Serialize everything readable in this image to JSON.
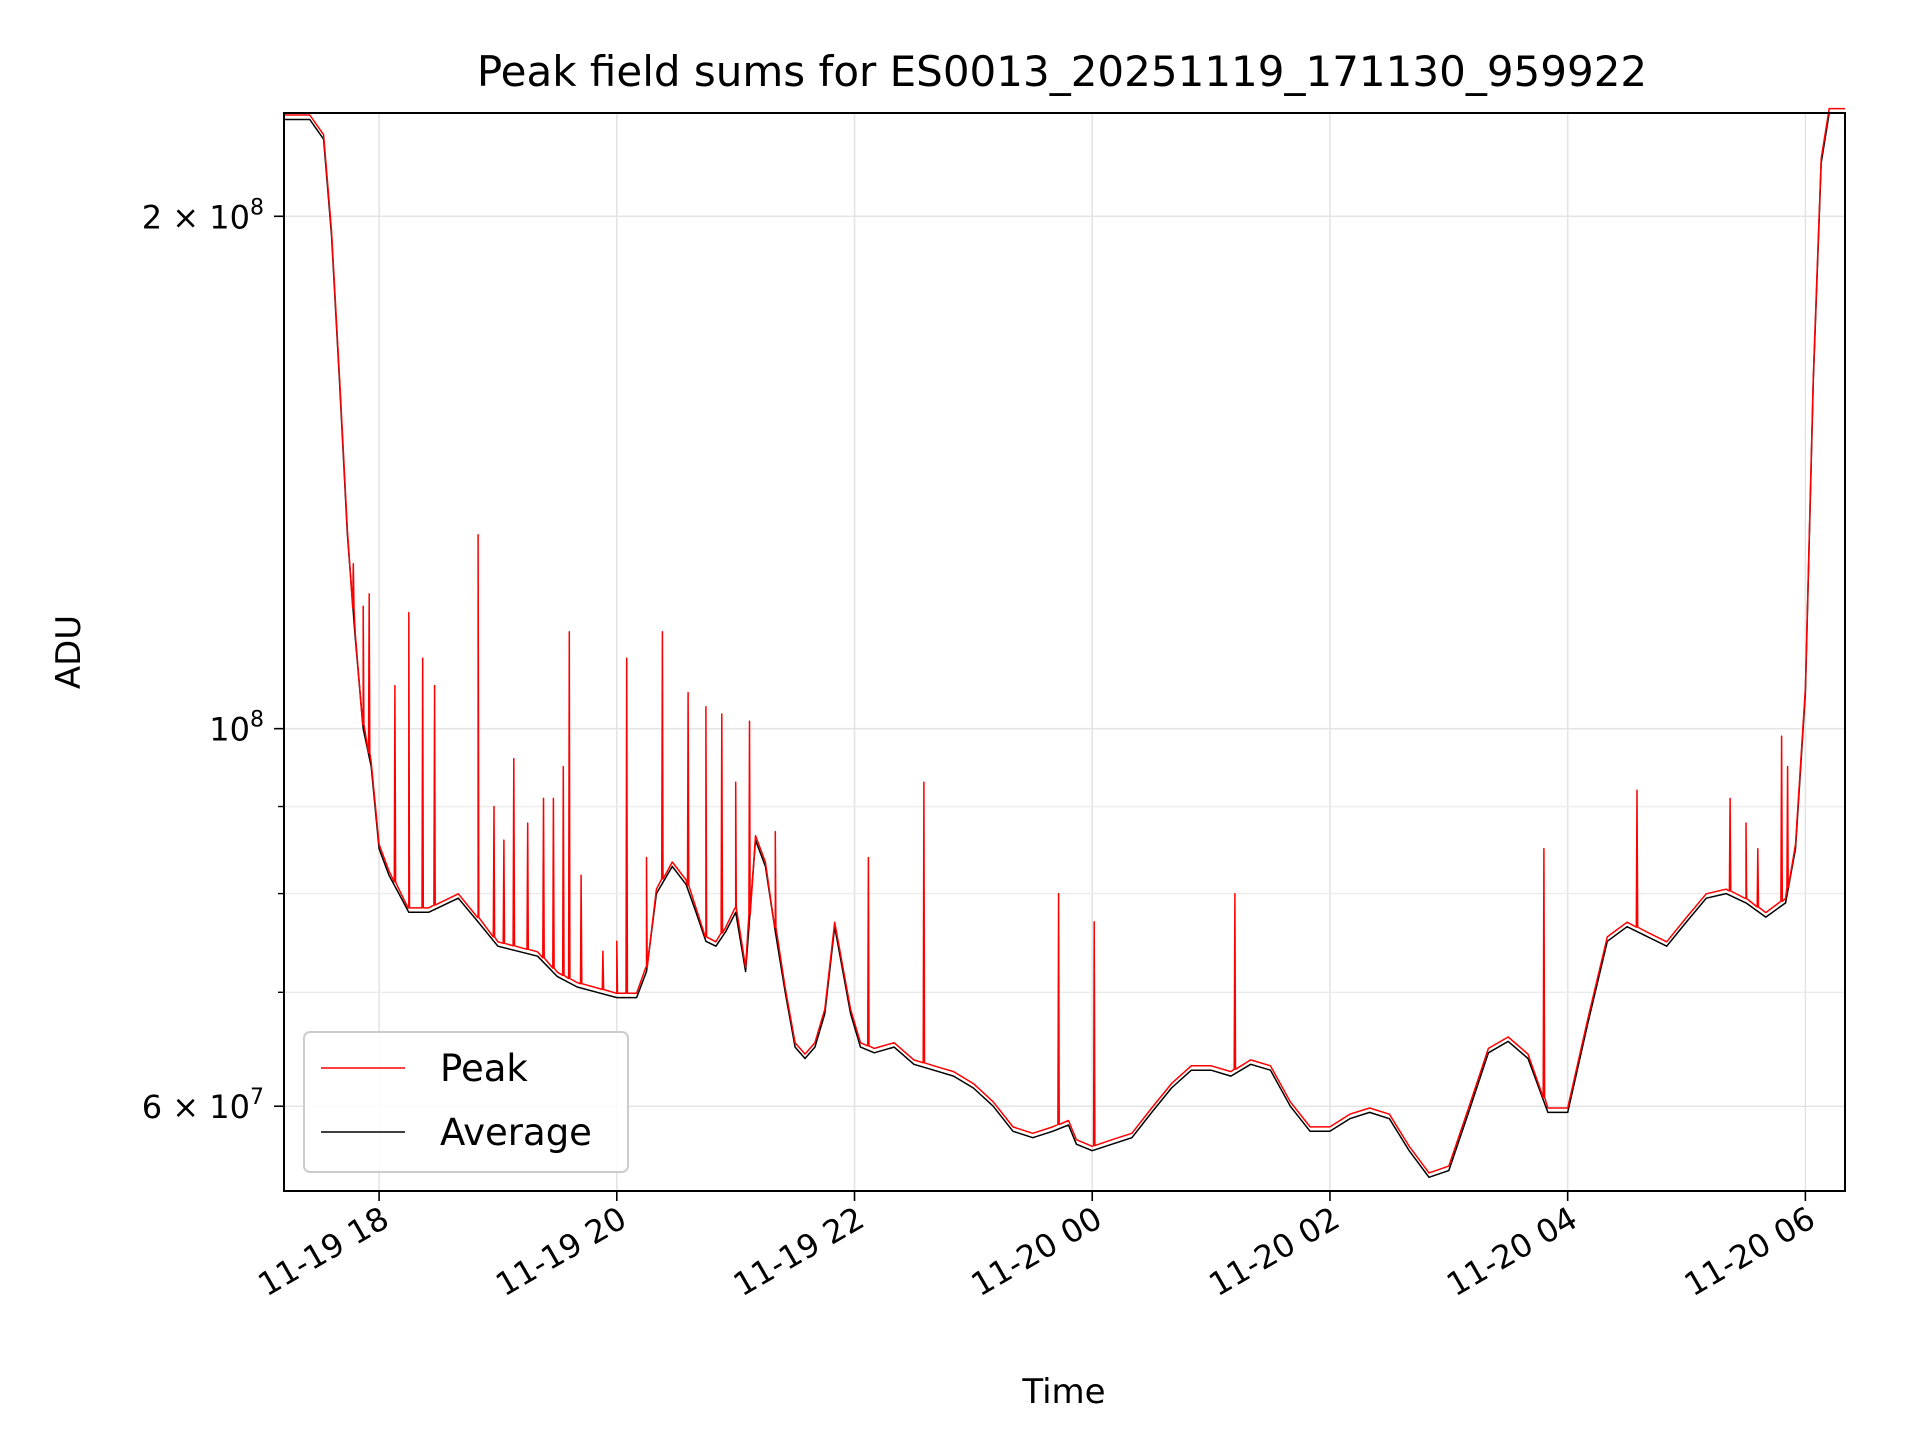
{
  "chart_data": {
    "type": "line",
    "title": "Peak field sums for ES0013_20251119_171130_959922",
    "xlabel": "Time",
    "ylabel": "ADU",
    "yscale": "log",
    "xlim": [
      "2025-11-19 17:12",
      "2025-11-20 06:20"
    ],
    "ylim": [
      53500000.0,
      230000000.0
    ],
    "grid": true,
    "legend_position": "lower-left",
    "x_ticks": [
      {
        "value": "2025-11-19 18:00",
        "label": "11-19 18"
      },
      {
        "value": "2025-11-19 20:00",
        "label": "11-19 20"
      },
      {
        "value": "2025-11-19 22:00",
        "label": "11-19 22"
      },
      {
        "value": "2025-11-20 00:00",
        "label": "11-20 00"
      },
      {
        "value": "2025-11-20 02:00",
        "label": "11-20 02"
      },
      {
        "value": "2025-11-20 04:00",
        "label": "11-20 04"
      },
      {
        "value": "2025-11-20 06:00",
        "label": "11-20 06"
      }
    ],
    "y_major_ticks": [
      {
        "value": 60000000,
        "label": "6 × 10",
        "exp": "7"
      },
      {
        "value": 100000000,
        "label": "10",
        "exp": "8"
      },
      {
        "value": 200000000,
        "label": "2 × 10",
        "exp": "8"
      }
    ],
    "y_minor_ticks": [
      70000000,
      80000000,
      90000000
    ],
    "series": [
      {
        "name": "Average",
        "color": "#000000",
        "points": [
          [
            "2025-11-19 17:12",
            228000000.0
          ],
          [
            "2025-11-19 17:25",
            228000000.0
          ],
          [
            "2025-11-19 17:32",
            222000000.0
          ],
          [
            "2025-11-19 17:36",
            195000000.0
          ],
          [
            "2025-11-19 17:40",
            160000000.0
          ],
          [
            "2025-11-19 17:44",
            130000000.0
          ],
          [
            "2025-11-19 17:48",
            113000000.0
          ],
          [
            "2025-11-19 17:52",
            100000000.0
          ],
          [
            "2025-11-19 17:56",
            95000000.0
          ],
          [
            "2025-11-19 18:00",
            85000000.0
          ],
          [
            "2025-11-19 18:05",
            82000000.0
          ],
          [
            "2025-11-19 18:10",
            80000000.0
          ],
          [
            "2025-11-19 18:15",
            78000000.0
          ],
          [
            "2025-11-19 18:25",
            78000000.0
          ],
          [
            "2025-11-19 18:40",
            79500000.0
          ],
          [
            "2025-11-19 18:50",
            77000000.0
          ],
          [
            "2025-11-19 19:00",
            74500000.0
          ],
          [
            "2025-11-19 19:10",
            74000000.0
          ],
          [
            "2025-11-19 19:20",
            73500000.0
          ],
          [
            "2025-11-19 19:30",
            71500000.0
          ],
          [
            "2025-11-19 19:40",
            70500000.0
          ],
          [
            "2025-11-19 19:50",
            70000000.0
          ],
          [
            "2025-11-19 20:00",
            69500000.0
          ],
          [
            "2025-11-19 20:10",
            69500000.0
          ],
          [
            "2025-11-19 20:15",
            72000000.0
          ],
          [
            "2025-11-19 20:20",
            80000000.0
          ],
          [
            "2025-11-19 20:28",
            83000000.0
          ],
          [
            "2025-11-19 20:35",
            81000000.0
          ],
          [
            "2025-11-19 20:40",
            78000000.0
          ],
          [
            "2025-11-19 20:45",
            75000000.0
          ],
          [
            "2025-11-19 20:50",
            74500000.0
          ],
          [
            "2025-11-19 20:55",
            76000000.0
          ],
          [
            "2025-11-19 21:00",
            78000000.0
          ],
          [
            "2025-11-19 21:05",
            72000000.0
          ],
          [
            "2025-11-19 21:10",
            86000000.0
          ],
          [
            "2025-11-19 21:15",
            83000000.0
          ],
          [
            "2025-11-19 21:20",
            76000000.0
          ],
          [
            "2025-11-19 21:25",
            70000000.0
          ],
          [
            "2025-11-19 21:30",
            65000000.0
          ],
          [
            "2025-11-19 21:35",
            64000000.0
          ],
          [
            "2025-11-19 21:40",
            65000000.0
          ],
          [
            "2025-11-19 21:45",
            68000000.0
          ],
          [
            "2025-11-19 21:50",
            76500000.0
          ],
          [
            "2025-11-19 21:58",
            68000000.0
          ],
          [
            "2025-11-19 22:03",
            65000000.0
          ],
          [
            "2025-11-19 22:10",
            64500000.0
          ],
          [
            "2025-11-19 22:20",
            65000000.0
          ],
          [
            "2025-11-19 22:30",
            63500000.0
          ],
          [
            "2025-11-19 22:40",
            63000000.0
          ],
          [
            "2025-11-19 22:50",
            62500000.0
          ],
          [
            "2025-11-19 23:00",
            61500000.0
          ],
          [
            "2025-11-19 23:10",
            60000000.0
          ],
          [
            "2025-11-19 23:20",
            58000000.0
          ],
          [
            "2025-11-19 23:30",
            57500000.0
          ],
          [
            "2025-11-19 23:40",
            58000000.0
          ],
          [
            "2025-11-19 23:48",
            58500000.0
          ],
          [
            "2025-11-19 23:52",
            57000000.0
          ],
          [
            "2025-11-20 00:00",
            56500000.0
          ],
          [
            "2025-11-20 00:10",
            57000000.0
          ],
          [
            "2025-11-20 00:20",
            57500000.0
          ],
          [
            "2025-11-20 00:30",
            59500000.0
          ],
          [
            "2025-11-20 00:40",
            61500000.0
          ],
          [
            "2025-11-20 00:50",
            63000000.0
          ],
          [
            "2025-11-20 01:00",
            63000000.0
          ],
          [
            "2025-11-20 01:10",
            62500000.0
          ],
          [
            "2025-11-20 01:20",
            63500000.0
          ],
          [
            "2025-11-20 01:30",
            63000000.0
          ],
          [
            "2025-11-20 01:40",
            60000000.0
          ],
          [
            "2025-11-20 01:50",
            58000000.0
          ],
          [
            "2025-11-20 02:00",
            58000000.0
          ],
          [
            "2025-11-20 02:10",
            59000000.0
          ],
          [
            "2025-11-20 02:20",
            59500000.0
          ],
          [
            "2025-11-20 02:30",
            59000000.0
          ],
          [
            "2025-11-20 02:40",
            56500000.0
          ],
          [
            "2025-11-20 02:50",
            54500000.0
          ],
          [
            "2025-11-20 03:00",
            55000000.0
          ],
          [
            "2025-11-20 03:10",
            59500000.0
          ],
          [
            "2025-11-20 03:20",
            64500000.0
          ],
          [
            "2025-11-20 03:30",
            65500000.0
          ],
          [
            "2025-11-20 03:40",
            64000000.0
          ],
          [
            "2025-11-20 03:50",
            59500000.0
          ],
          [
            "2025-11-20 04:00",
            59500000.0
          ],
          [
            "2025-11-20 04:10",
            67000000.0
          ],
          [
            "2025-11-20 04:20",
            75000000.0
          ],
          [
            "2025-11-20 04:30",
            76500000.0
          ],
          [
            "2025-11-20 04:40",
            75500000.0
          ],
          [
            "2025-11-20 04:50",
            74500000.0
          ],
          [
            "2025-11-20 05:00",
            77000000.0
          ],
          [
            "2025-11-20 05:10",
            79500000.0
          ],
          [
            "2025-11-20 05:20",
            80000000.0
          ],
          [
            "2025-11-20 05:30",
            79000000.0
          ],
          [
            "2025-11-20 05:40",
            77500000.0
          ],
          [
            "2025-11-20 05:50",
            79000000.0
          ],
          [
            "2025-11-20 05:55",
            85000000.0
          ],
          [
            "2025-11-20 06:00",
            105000000.0
          ],
          [
            "2025-11-20 06:04",
            160000000.0
          ],
          [
            "2025-11-20 06:08",
            215000000.0
          ],
          [
            "2025-11-20 06:12",
            230000000.0
          ],
          [
            "2025-11-20 06:20",
            230000000.0
          ]
        ]
      },
      {
        "name": "Peak",
        "color": "#ff0000",
        "spikes": [
          [
            "2025-11-19 17:47",
            125000000.0
          ],
          [
            "2025-11-19 17:52",
            118000000.0
          ],
          [
            "2025-11-19 17:55",
            120000000.0
          ],
          [
            "2025-11-19 18:08",
            106000000.0
          ],
          [
            "2025-11-19 18:15",
            117000000.0
          ],
          [
            "2025-11-19 18:22",
            110000000.0
          ],
          [
            "2025-11-19 18:28",
            106000000.0
          ],
          [
            "2025-11-19 18:50",
            130000000.0
          ],
          [
            "2025-11-19 18:58",
            90000000.0
          ],
          [
            "2025-11-19 19:03",
            86000000.0
          ],
          [
            "2025-11-19 19:08",
            96000000.0
          ],
          [
            "2025-11-19 19:15",
            88000000.0
          ],
          [
            "2025-11-19 19:23",
            91000000.0
          ],
          [
            "2025-11-19 19:28",
            91000000.0
          ],
          [
            "2025-11-19 19:33",
            95000000.0
          ],
          [
            "2025-11-19 19:36",
            114000000.0
          ],
          [
            "2025-11-19 19:42",
            82000000.0
          ],
          [
            "2025-11-19 19:53",
            74000000.0
          ],
          [
            "2025-11-19 20:00",
            75000000.0
          ],
          [
            "2025-11-19 20:05",
            110000000.0
          ],
          [
            "2025-11-19 20:15",
            84000000.0
          ],
          [
            "2025-11-19 20:23",
            114000000.0
          ],
          [
            "2025-11-19 20:36",
            105000000.0
          ],
          [
            "2025-11-19 20:45",
            103000000.0
          ],
          [
            "2025-11-19 20:53",
            102000000.0
          ],
          [
            "2025-11-19 21:00",
            93000000.0
          ],
          [
            "2025-11-19 21:07",
            101000000.0
          ],
          [
            "2025-11-19 21:20",
            87000000.0
          ],
          [
            "2025-11-19 22:07",
            84000000.0
          ],
          [
            "2025-11-19 22:35",
            93000000.0
          ],
          [
            "2025-11-19 23:43",
            80000000.0
          ],
          [
            "2025-11-20 00:01",
            77000000.0
          ],
          [
            "2025-11-20 01:12",
            80000000.0
          ],
          [
            "2025-11-20 03:48",
            85000000.0
          ],
          [
            "2025-11-20 04:35",
            92000000.0
          ],
          [
            "2025-11-20 05:22",
            91000000.0
          ],
          [
            "2025-11-20 05:30",
            88000000.0
          ],
          [
            "2025-11-20 05:36",
            85000000.0
          ],
          [
            "2025-11-20 05:48",
            99000000.0
          ],
          [
            "2025-11-20 05:51",
            95000000.0
          ]
        ]
      }
    ]
  }
}
